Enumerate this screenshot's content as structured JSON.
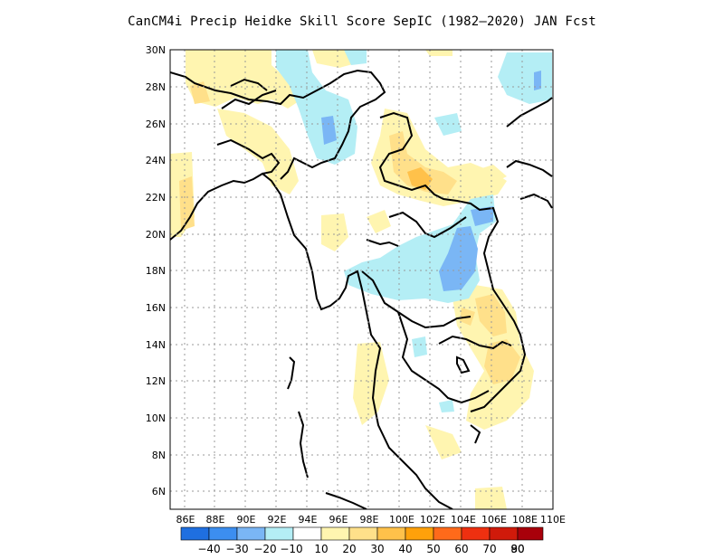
{
  "title": "CanCM4i Precip Heidke Skill Score SepIC (1982–2020) JAN Fcst",
  "map": {
    "lon_labels": [
      "86E",
      "88E",
      "90E",
      "92E",
      "94E",
      "96E",
      "98E",
      "100E",
      "102E",
      "104E",
      "106E",
      "108E",
      "110E"
    ],
    "lat_labels": [
      "30N",
      "28N",
      "26N",
      "24N",
      "22N",
      "20N",
      "18N",
      "16N",
      "14N",
      "12N",
      "10N",
      "8N",
      "6N"
    ],
    "lon_range": [
      85,
      110
    ],
    "lat_range": [
      5,
      30
    ],
    "grid": "dotted"
  },
  "colorbar": {
    "labels": [
      "−40",
      "−30",
      "−20",
      "−10",
      "10",
      "20",
      "30",
      "40",
      "50",
      "60",
      "70",
      "80",
      "90"
    ],
    "colors": [
      "#1f6fe0",
      "#3c8ef0",
      "#7ab6f5",
      "#b4eef5",
      "#ffffff",
      "#fff5b0",
      "#ffe08a",
      "#ffc14a",
      "#ffa10a",
      "#ff6a1a",
      "#ee3010",
      "#d01a0a",
      "#a8000a"
    ]
  },
  "field_colors": {
    "light_yellow": "#fff5b0",
    "yellow": "#ffe08a",
    "orange": "#ffc14a",
    "light_cyan": "#b4eef5",
    "light_blue": "#7ab6f5",
    "blue": "#3c8ef0"
  }
}
